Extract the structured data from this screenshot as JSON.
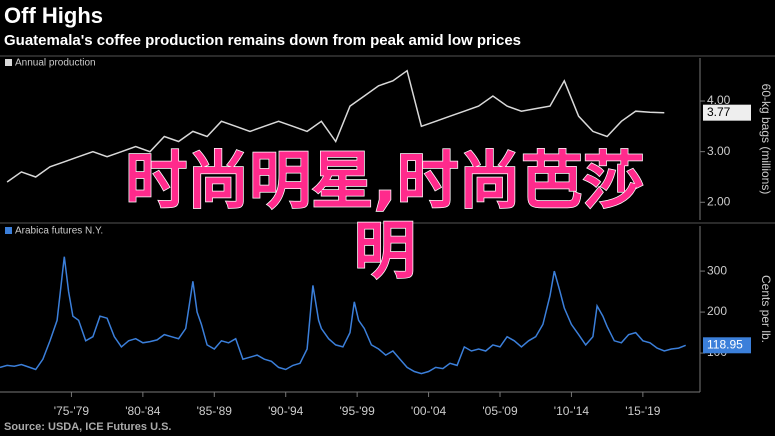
{
  "header": {
    "title": "Off Highs",
    "subtitle": "Guatemala's coffee production remains down from peak amid low prices"
  },
  "chart_data": [
    {
      "type": "line",
      "ylabel": "60-kg bags (millions)",
      "x": [
        1973,
        1974,
        1975,
        1976,
        1977,
        1978,
        1979,
        1980,
        1981,
        1982,
        1983,
        1984,
        1985,
        1986,
        1987,
        1988,
        1989,
        1990,
        1991,
        1992,
        1993,
        1994,
        1995,
        1996,
        1997,
        1998,
        1999,
        2000,
        2001,
        2002,
        2003,
        2004,
        2005,
        2006,
        2007,
        2008,
        2009,
        2010,
        2011,
        2012,
        2013,
        2014,
        2015,
        2016,
        2017,
        2018,
        2019
      ],
      "series": [
        {
          "name": "Annual production",
          "color": "#d9d9d9",
          "values": [
            2.4,
            2.6,
            2.5,
            2.7,
            2.8,
            2.9,
            3.0,
            2.9,
            3.0,
            3.1,
            3.0,
            3.3,
            3.2,
            3.4,
            3.3,
            3.6,
            3.5,
            3.4,
            3.5,
            3.6,
            3.5,
            3.4,
            3.6,
            3.2,
            3.9,
            4.1,
            4.3,
            4.4,
            4.6,
            3.5,
            3.6,
            3.7,
            3.8,
            3.9,
            4.1,
            3.9,
            3.8,
            3.85,
            3.9,
            4.4,
            3.7,
            3.4,
            3.3,
            3.6,
            3.8,
            3.78,
            3.77
          ],
          "value_labels": [
            null,
            null,
            null,
            null,
            null,
            null,
            null,
            null,
            null,
            null,
            null,
            null,
            null,
            null,
            null,
            null,
            null,
            null,
            null,
            null,
            null,
            null,
            null,
            null,
            null,
            null,
            null,
            null,
            null,
            null,
            null,
            null,
            null,
            null,
            null,
            null,
            null,
            null,
            null,
            null,
            null,
            null,
            null,
            null,
            null,
            null,
            "3.77"
          ]
        }
      ],
      "xlim": [
        1972.5,
        2021.5
      ],
      "ylim": [
        1.65,
        4.85
      ],
      "yticks": [
        {
          "value": 2,
          "label": "2.00"
        },
        {
          "value": 3,
          "label": "3.00"
        },
        {
          "value": 4,
          "label": "4.00"
        }
      ]
    },
    {
      "type": "line",
      "ylabel": "Cents per lb.",
      "x": [
        1972.5,
        1973,
        1973.5,
        1974,
        1974.5,
        1975,
        1975.5,
        1976,
        1976.5,
        1977,
        1977.3,
        1977.6,
        1978,
        1978.5,
        1979,
        1979.5,
        1980,
        1980.5,
        1981,
        1981.5,
        1982,
        1982.5,
        1983,
        1983.5,
        1984,
        1984.5,
        1985,
        1985.5,
        1986,
        1986.3,
        1986.6,
        1987,
        1987.5,
        1988,
        1988.5,
        1989,
        1989.5,
        1990,
        1990.5,
        1991,
        1991.5,
        1992,
        1992.5,
        1993,
        1993.5,
        1994,
        1994.4,
        1994.8,
        1995,
        1995.5,
        1996,
        1996.5,
        1997,
        1997.3,
        1997.6,
        1998,
        1998.5,
        1999,
        1999.5,
        2000,
        2000.5,
        2001,
        2001.5,
        2002,
        2002.5,
        2003,
        2003.5,
        2004,
        2004.5,
        2005,
        2005.5,
        2006,
        2006.5,
        2007,
        2007.5,
        2008,
        2008.5,
        2009,
        2009.5,
        2010,
        2010.5,
        2011,
        2011.3,
        2011.7,
        2012,
        2012.5,
        2013,
        2013.5,
        2014,
        2014.3,
        2014.7,
        2015,
        2015.5,
        2016,
        2016.5,
        2017,
        2017.5,
        2018,
        2018.5,
        2019,
        2019.5,
        2020,
        2020.5
      ],
      "series": [
        {
          "name": "Arabica futures N.Y.",
          "color": "#3b7fda",
          "values": [
            65,
            70,
            68,
            72,
            66,
            60,
            85,
            130,
            180,
            335,
            250,
            190,
            180,
            130,
            140,
            190,
            185,
            140,
            115,
            130,
            135,
            125,
            128,
            132,
            145,
            140,
            135,
            160,
            275,
            200,
            170,
            120,
            110,
            130,
            125,
            135,
            85,
            90,
            95,
            85,
            80,
            65,
            60,
            70,
            75,
            110,
            265,
            180,
            160,
            135,
            120,
            115,
            150,
            225,
            180,
            160,
            120,
            110,
            95,
            105,
            85,
            65,
            55,
            50,
            55,
            65,
            62,
            75,
            70,
            115,
            105,
            110,
            105,
            120,
            115,
            140,
            130,
            115,
            130,
            140,
            170,
            240,
            300,
            250,
            210,
            170,
            145,
            120,
            140,
            215,
            190,
            165,
            130,
            125,
            145,
            150,
            130,
            125,
            112,
            105,
            110,
            112,
            118.95
          ]
        }
      ],
      "xlim": [
        1972.5,
        2021.5
      ],
      "ylim": [
        5,
        410
      ],
      "yticks": [
        100,
        200,
        300
      ],
      "xticks": [
        {
          "value": 1977.5,
          "label": "'75-'79"
        },
        {
          "value": 1982.5,
          "label": "'80-'84"
        },
        {
          "value": 1987.5,
          "label": "'85-'89"
        },
        {
          "value": 1992.5,
          "label": "'90-'94"
        },
        {
          "value": 1997.5,
          "label": "'95-'99"
        },
        {
          "value": 2002.5,
          "label": "'00-'04"
        },
        {
          "value": 2007.5,
          "label": "'05-'09"
        },
        {
          "value": 2012.5,
          "label": "'10-'14"
        },
        {
          "value": 2017.5,
          "label": "'15-'19"
        }
      ]
    }
  ],
  "footer": {
    "source": "Source: USDA, ICE Futures U.S."
  },
  "overlay": {
    "lines": [
      "时尚明星,时尚芭莎",
      "明"
    ]
  }
}
